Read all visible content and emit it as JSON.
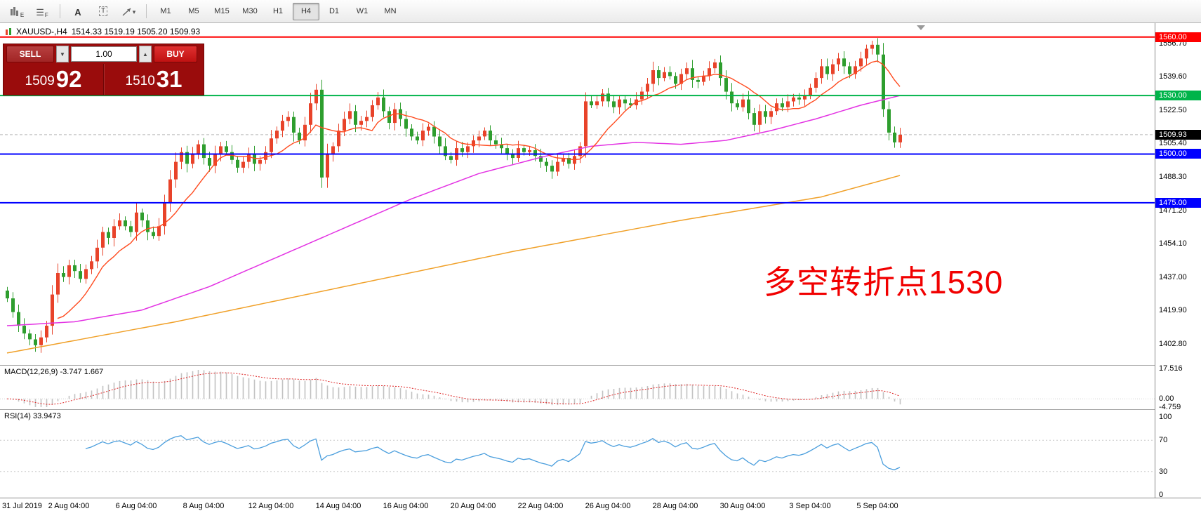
{
  "toolbar": {
    "icons": [
      {
        "label": "E"
      },
      {
        "label": "F"
      },
      {
        "label": "A"
      },
      {
        "label": "T"
      }
    ],
    "dropdown_glyph": "▾",
    "timeframes": [
      "M1",
      "M5",
      "M15",
      "M30",
      "H1",
      "H4",
      "D1",
      "W1",
      "MN"
    ],
    "active_timeframe": "H4"
  },
  "symbol_header": {
    "symbol": "XAUUSD-,H4",
    "ohlc": "1514.33 1519.19 1505.20 1509.93"
  },
  "trade_panel": {
    "sell_label": "SELL",
    "buy_label": "BUY",
    "volume": "1.00",
    "spinner_down_glyph": "▼",
    "spinner_up_glyph": "▲",
    "bid": {
      "main": "1509",
      "pips": "92"
    },
    "ask": {
      "main": "1510",
      "pips": "31"
    }
  },
  "annotation": {
    "text": "多空转折点1530",
    "color": "#f10000"
  },
  "price_axis": {
    "ticks": [
      "1556.70",
      "1539.60",
      "1522.50",
      "1505.40",
      "1488.30",
      "1471.20",
      "1454.10",
      "1437.00",
      "1419.90",
      "1402.80"
    ]
  },
  "levels": {
    "hlines": [
      {
        "value": 1560.0,
        "label": "1560.00",
        "color": "#ff0000"
      },
      {
        "value": 1530.0,
        "label": "1530.00",
        "color": "#00b44a"
      },
      {
        "value": 1500.0,
        "label": "1500.00",
        "color": "#0000ff"
      },
      {
        "value": 1475.0,
        "label": "1475.00",
        "color": "#0000ff"
      }
    ],
    "current_price": {
      "value": 1509.93,
      "label": "1509.93",
      "badge_color": "#000000"
    }
  },
  "macd_panel": {
    "header": "MACD(12,26,9) -3.747 1.667",
    "scale_labels": [
      "17.516",
      "0.00",
      "-4.759"
    ],
    "scale_values": [
      17.516,
      0,
      -4.759
    ]
  },
  "rsi_panel": {
    "header": "RSI(14) 33.9473",
    "scale_labels": [
      "100",
      "70",
      "30",
      "0"
    ],
    "scale_values": [
      100,
      70,
      30,
      0
    ]
  },
  "time_axis": {
    "labels": [
      {
        "text": "31 Jul 2019",
        "index": 0
      },
      {
        "text": "2 Aug 04:00",
        "index": 11
      },
      {
        "text": "6 Aug 04:00",
        "index": 23
      },
      {
        "text": "8 Aug 04:00",
        "index": 35
      },
      {
        "text": "12 Aug 04:00",
        "index": 47
      },
      {
        "text": "14 Aug 04:00",
        "index": 59
      },
      {
        "text": "16 Aug 04:00",
        "index": 71
      },
      {
        "text": "20 Aug 04:00",
        "index": 83
      },
      {
        "text": "22 Aug 04:00",
        "index": 95
      },
      {
        "text": "26 Aug 04:00",
        "index": 107
      },
      {
        "text": "28 Aug 04:00",
        "index": 119
      },
      {
        "text": "30 Aug 04:00",
        "index": 131
      },
      {
        "text": "3 Sep 04:00",
        "index": 143
      },
      {
        "text": "5 Sep 04:00",
        "index": 155
      }
    ]
  },
  "chart_data": {
    "type": "candlestick",
    "symbol": "XAUUSD",
    "timeframe": "H4",
    "y_range": [
      1391.5,
      1567.1
    ],
    "first_open": 1430,
    "up_color": "#e8432a",
    "down_color": "#2e9e2e",
    "closes": [
      1426,
      1419,
      1412,
      1408,
      1405,
      1402,
      1406,
      1412,
      1428,
      1439,
      1437,
      1443,
      1440,
      1436,
      1441,
      1445,
      1452,
      1460,
      1457,
      1463,
      1466,
      1463,
      1460,
      1470,
      1466,
      1460,
      1458,
      1463,
      1475,
      1487,
      1496,
      1501,
      1495,
      1500,
      1505,
      1498,
      1494,
      1500,
      1504,
      1501,
      1497,
      1493,
      1496,
      1500,
      1495,
      1497,
      1501,
      1508,
      1512,
      1517,
      1519,
      1511,
      1507,
      1515,
      1526,
      1533,
      1488,
      1500,
      1504,
      1512,
      1518,
      1522,
      1515,
      1517,
      1519,
      1525,
      1529,
      1522,
      1516,
      1523,
      1518,
      1513,
      1509,
      1507,
      1512,
      1514,
      1509,
      1504,
      1499,
      1497,
      1503,
      1501,
      1504,
      1507,
      1509,
      1512,
      1507,
      1505,
      1503,
      1500,
      1498,
      1503,
      1501,
      1502,
      1499,
      1496,
      1494,
      1491,
      1496,
      1498,
      1495,
      1499,
      1504,
      1527,
      1525,
      1527,
      1531,
      1527,
      1524,
      1528,
      1526,
      1525,
      1528,
      1532,
      1536,
      1543,
      1539,
      1542,
      1540,
      1536,
      1541,
      1544,
      1538,
      1537,
      1540,
      1544,
      1547,
      1539,
      1532,
      1526,
      1524,
      1528,
      1521,
      1515,
      1522,
      1519,
      1522,
      1526,
      1524,
      1527,
      1529,
      1528,
      1530,
      1534,
      1539,
      1545,
      1541,
      1546,
      1549,
      1545,
      1541,
      1545,
      1549,
      1554,
      1556,
      1551,
      1523,
      1511,
      1506,
      1509.9
    ],
    "ma_fast": {
      "color": "#ff4a1e",
      "period": 10
    },
    "ma_mid": {
      "color": "#e332e3",
      "anchors": [
        [
          0,
          1412
        ],
        [
          12,
          1414
        ],
        [
          24,
          1420
        ],
        [
          36,
          1432
        ],
        [
          48,
          1447
        ],
        [
          60,
          1462
        ],
        [
          72,
          1477
        ],
        [
          84,
          1490
        ],
        [
          96,
          1499
        ],
        [
          104,
          1504
        ],
        [
          112,
          1506
        ],
        [
          120,
          1505
        ],
        [
          128,
          1507
        ],
        [
          136,
          1512
        ],
        [
          144,
          1518
        ],
        [
          152,
          1525
        ],
        [
          159,
          1530
        ]
      ]
    },
    "ma_slow": {
      "color": "#f0a028",
      "anchors": [
        [
          0,
          1398
        ],
        [
          30,
          1414
        ],
        [
          60,
          1432
        ],
        [
          90,
          1450
        ],
        [
          120,
          1466
        ],
        [
          145,
          1478
        ],
        [
          159,
          1489
        ]
      ]
    },
    "indicators": {
      "macd": {
        "fast": 12,
        "slow": 26,
        "signal": 9
      },
      "rsi": {
        "period": 14
      }
    }
  }
}
